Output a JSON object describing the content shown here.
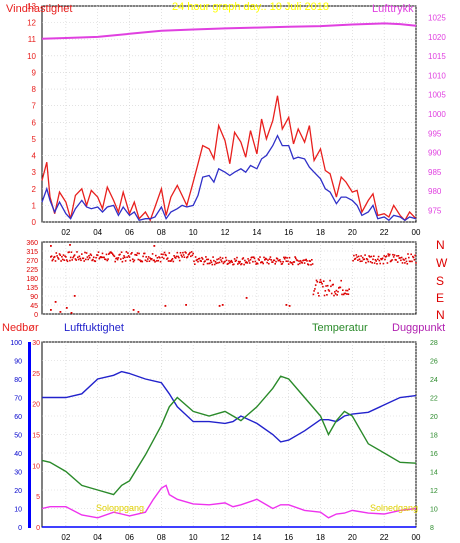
{
  "colors": {
    "wind": "#e8201e",
    "gust_dark": "#3030c8",
    "pressure": "#e040e0",
    "winddir": "#dd0000",
    "rain": "#0000ff",
    "humidity": "#2222cc",
    "temperature": "#2a8a2a",
    "dewpoint": "#ee33ee",
    "title": "#ffff00",
    "sun": "#ffff00",
    "grid": "#cccccc",
    "border": "#000000"
  },
  "chart_data": [
    {
      "type": "line",
      "panel": "wind_pressure",
      "title": "24 hour graph day.. 10 Juli 2018",
      "ylabel_left": "Vindhastighet",
      "ylabel_right": "Lufttrykk",
      "x_ticks": [
        "02",
        "04",
        "06",
        "08",
        "10",
        "12",
        "14",
        "16",
        "18",
        "20",
        "22",
        "00"
      ],
      "x_range_hours": [
        0.5,
        24
      ],
      "ylim_left": [
        0,
        13
      ],
      "yticks_left": [
        0,
        1,
        2,
        3,
        4,
        5,
        6,
        7,
        8,
        9,
        10,
        11,
        12,
        13
      ],
      "ylim_right": [
        972,
        1028
      ],
      "yticks_right": [
        975,
        980,
        985,
        990,
        995,
        1000,
        1005,
        1010,
        1015,
        1020,
        1025
      ],
      "series": [
        {
          "name": "Vindhastighet",
          "axis": "left",
          "color": "#e8201e",
          "x": [
            0.5,
            0.8,
            1.0,
            1.3,
            1.6,
            2.0,
            2.3,
            2.6,
            3.0,
            3.3,
            3.6,
            4.0,
            4.3,
            4.6,
            5.0,
            5.3,
            5.6,
            6.0,
            6.3,
            6.6,
            7.0,
            7.3,
            7.6,
            8.0,
            8.3,
            8.6,
            9.0,
            9.3,
            9.6,
            10.0,
            10.3,
            10.6,
            11.0,
            11.3,
            11.6,
            12.0,
            12.3,
            12.6,
            13.0,
            13.3,
            13.6,
            14.0,
            14.3,
            14.6,
            15.0,
            15.3,
            15.6,
            16.0,
            16.3,
            16.6,
            17.0,
            17.3,
            17.6,
            18.0,
            18.3,
            18.6,
            19.0,
            19.3,
            19.6,
            20.0,
            20.3,
            20.6,
            21.0,
            21.3,
            21.6,
            22.0,
            22.3,
            22.6,
            23.0,
            23.3,
            23.6,
            24.0
          ],
          "y": [
            2.5,
            3.6,
            1.5,
            0.5,
            1.8,
            1.2,
            0.2,
            1.6,
            2.0,
            1.0,
            1.9,
            1.5,
            0.8,
            2.1,
            1.3,
            0.6,
            1.8,
            0.5,
            1.2,
            0.2,
            0.6,
            0.1,
            0.9,
            2.0,
            0.4,
            1.5,
            2.2,
            1.6,
            1.0,
            2.4,
            3.5,
            4.6,
            4.4,
            3.8,
            5.8,
            4.9,
            3.5,
            5.4,
            4.8,
            3.9,
            5.5,
            4.1,
            6.2,
            5.0,
            6.1,
            7.6,
            5.6,
            6.3,
            4.7,
            5.6,
            4.8,
            5.8,
            3.7,
            4.4,
            3.1,
            2.9,
            1.5,
            2.7,
            2.4,
            1.8,
            1.9,
            0.6,
            1.3,
            1.7,
            0.4,
            0.5,
            0.3,
            1.0,
            0.4,
            0.1,
            0.6,
            0.2
          ]
        },
        {
          "name": "",
          "axis": "left",
          "color": "#3030c8",
          "x": [
            0.5,
            0.8,
            1.0,
            1.3,
            1.6,
            2.0,
            2.3,
            2.6,
            3.0,
            3.3,
            3.6,
            4.0,
            4.3,
            4.6,
            5.0,
            5.3,
            5.6,
            6.0,
            6.3,
            6.6,
            7.0,
            7.3,
            7.6,
            8.0,
            8.3,
            8.6,
            9.0,
            9.3,
            9.6,
            10.0,
            10.3,
            10.6,
            11.0,
            11.3,
            11.6,
            12.0,
            12.3,
            12.6,
            13.0,
            13.3,
            13.6,
            14.0,
            14.3,
            14.6,
            15.0,
            15.3,
            15.6,
            16.0,
            16.3,
            16.6,
            17.0,
            17.3,
            17.6,
            18.0,
            18.3,
            18.6,
            19.0,
            19.3,
            19.6,
            20.0,
            20.3,
            20.6,
            21.0,
            21.3,
            21.6,
            22.0,
            22.3,
            22.6,
            23.0,
            23.3,
            23.6,
            24.0
          ],
          "y": [
            1.2,
            2.0,
            1.3,
            0.6,
            1.2,
            0.5,
            0.2,
            0.8,
            1.3,
            0.9,
            0.8,
            0.9,
            0.6,
            0.9,
            1.0,
            0.4,
            0.9,
            0.4,
            0.6,
            0.1,
            0.2,
            0.2,
            0.3,
            0.9,
            0.2,
            0.6,
            0.8,
            1.0,
            0.9,
            1.0,
            1.6,
            2.7,
            2.8,
            2.4,
            3.2,
            3.0,
            2.8,
            3.0,
            3.2,
            3.0,
            3.4,
            3.2,
            3.8,
            4.0,
            4.6,
            5.2,
            4.6,
            4.6,
            3.8,
            3.9,
            3.8,
            3.3,
            3.0,
            2.6,
            2.0,
            1.8,
            1.1,
            1.5,
            1.5,
            1.3,
            1.0,
            0.4,
            0.6,
            1.0,
            0.2,
            0.3,
            0.1,
            0.4,
            0.3,
            0.1,
            0.3,
            0.2
          ]
        },
        {
          "name": "Lufttrykk",
          "axis": "right",
          "color": "#e040e0",
          "x": [
            0.5,
            2,
            4,
            6,
            8,
            10,
            12,
            14,
            16,
            18,
            20,
            22,
            23,
            24
          ],
          "y": [
            1019.5,
            1019.7,
            1020.0,
            1020.8,
            1021.6,
            1021.9,
            1022.2,
            1022.4,
            1022.6,
            1022.8,
            1023.2,
            1023.5,
            1023.3,
            1022.9
          ]
        }
      ]
    },
    {
      "type": "scatter",
      "panel": "wind_direction",
      "ylabel_right": [
        "N",
        "W",
        "S",
        "E",
        "N"
      ],
      "ylim": [
        0,
        360
      ],
      "yticks": [
        0,
        45,
        90,
        135,
        180,
        225,
        270,
        315,
        360
      ],
      "ytick_labels": [
        "0",
        "45",
        "90",
        "135",
        "180",
        "225",
        "270",
        "315",
        "360"
      ],
      "series": [
        {
          "name": "",
          "color": "#dd0000",
          "segments": [
            {
              "x_range": [
                1.0,
                10.0
              ],
              "y_center": 285,
              "y_spread": 25
            },
            {
              "x_range": [
                10.0,
                17.5
              ],
              "y_center": 265,
              "y_spread": 20
            },
            {
              "x_range": [
                17.5,
                19.8
              ],
              "y_center": 130,
              "y_spread": 40
            },
            {
              "x_range": [
                20.0,
                24.0
              ],
              "y_center": 275,
              "y_spread": 25
            }
          ],
          "outliers": [
            [
              1,
              20
            ],
            [
              1.3,
              60
            ],
            [
              1.6,
              10
            ],
            [
              2,
              30
            ],
            [
              2.3,
              5
            ],
            [
              2.5,
              90
            ],
            [
              6.2,
              20
            ],
            [
              6.5,
              10
            ],
            [
              8.2,
              40
            ],
            [
              9.5,
              45
            ],
            [
              11.6,
              40
            ],
            [
              11.8,
              45
            ],
            [
              13.3,
              80
            ],
            [
              15.8,
              45
            ],
            [
              16.0,
              40
            ],
            [
              1.0,
              340
            ],
            [
              2.2,
              345
            ],
            [
              7.5,
              340
            ]
          ]
        }
      ]
    },
    {
      "type": "line",
      "panel": "temp_humidity",
      "label_rain": "Nedbør",
      "label_humidity": "Luftfuktighet",
      "label_temp": "Temperatur",
      "label_dew": "Duggpunkt",
      "sunrise_label": "Soloppgang",
      "sunset_label": "Solnedgang",
      "x_ticks": [
        "02",
        "04",
        "06",
        "08",
        "10",
        "12",
        "14",
        "16",
        "18",
        "20",
        "22",
        "00"
      ],
      "yticks_rain": [
        0,
        10,
        20,
        30,
        40,
        50,
        60,
        70,
        80,
        90,
        100
      ],
      "yticks_hum": [
        0,
        5,
        10,
        15,
        20,
        25,
        30
      ],
      "yticks_temp": [
        8,
        10,
        12,
        14,
        16,
        18,
        20,
        22,
        24,
        26,
        28
      ],
      "ylim_left": [
        0,
        100
      ],
      "ylim_temp": [
        8,
        28
      ],
      "series": [
        {
          "name": "Luftfuktighet",
          "axis": "left",
          "color": "#2222cc",
          "x": [
            0.5,
            1,
            2,
            3,
            4,
            5,
            5.5,
            6,
            7,
            8,
            8.5,
            9,
            10,
            11,
            12,
            12.5,
            13,
            14,
            15,
            15.5,
            16,
            17,
            18,
            18.5,
            19,
            19.5,
            20,
            21,
            22,
            23,
            24
          ],
          "y": [
            70,
            70,
            70,
            72,
            80,
            82,
            84,
            83,
            80,
            78,
            72,
            65,
            57,
            57,
            56,
            57,
            60,
            56,
            50,
            46,
            47,
            52,
            58,
            58,
            57,
            60,
            61,
            62,
            66,
            70,
            71
          ]
        },
        {
          "name": "Temperatur",
          "axis": "temp",
          "color": "#2a8a2a",
          "x": [
            0.5,
            1,
            2,
            3,
            4,
            5,
            5.5,
            6,
            7,
            8,
            8.5,
            9,
            10,
            11,
            12,
            12.5,
            13,
            14,
            15,
            15.5,
            16,
            17,
            18,
            18.5,
            19,
            19.5,
            20,
            21,
            22,
            23,
            24
          ],
          "y": [
            15.2,
            15.0,
            14.0,
            12.5,
            12.0,
            11.5,
            12.5,
            13.0,
            15.8,
            19.0,
            21.0,
            22.0,
            20.5,
            20.0,
            20.5,
            20.0,
            19.5,
            21.0,
            23.0,
            24.3,
            24.0,
            22.0,
            20.0,
            18.0,
            19.5,
            20.5,
            20.0,
            17.0,
            16.0,
            15.0,
            14.9
          ]
        },
        {
          "name": "Duggpunkt",
          "axis": "temp",
          "color": "#ee33ee",
          "x": [
            0.5,
            1,
            2,
            3,
            4,
            5,
            5.5,
            6,
            7,
            7.5,
            8,
            8.3,
            8.5,
            9,
            10,
            11,
            12,
            12.5,
            13,
            14,
            15,
            15.5,
            16,
            17,
            18,
            18.5,
            19,
            19.5,
            20,
            21,
            22,
            23,
            24
          ],
          "y": [
            10.0,
            10.2,
            10.2,
            9.3,
            9.0,
            9.6,
            9.4,
            9.2,
            9.6,
            11.0,
            12.2,
            12.5,
            11.5,
            11.0,
            10.5,
            10.4,
            10.6,
            10.2,
            10.4,
            11.0,
            10.0,
            10.4,
            10.4,
            9.8,
            9.6,
            9.0,
            9.4,
            9.5,
            9.8,
            9.5,
            9.4,
            9.8,
            10.0
          ]
        },
        {
          "name": "Nedbør",
          "axis": "left",
          "color": "#0000ff",
          "x": [
            0.5,
            24
          ],
          "y": [
            0,
            0
          ]
        }
      ]
    }
  ]
}
